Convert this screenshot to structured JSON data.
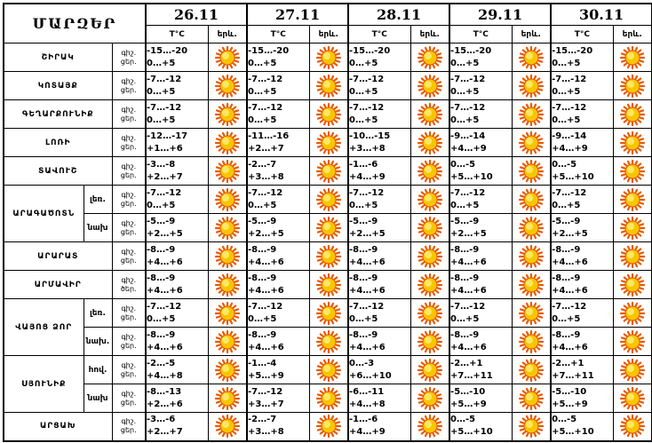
{
  "header": {
    "title": "ՄԱՐԶԵՐ",
    "dates": [
      "26.11",
      "27.11",
      "28.11",
      "29.11",
      "30.11"
    ],
    "temp_label": "T°C",
    "weather_label": "երև."
  },
  "labels": {
    "night": "գիշ.",
    "day": "ցեր.",
    "day_alt": "ծեր."
  },
  "icon": "sun-icon",
  "colors": {
    "sun_core": "#f7c600",
    "sun_rays": "#e85a00"
  },
  "rows": [
    {
      "region": "ՇԻՐԱԿ",
      "sub": "",
      "label_day": "ցեր.",
      "temps": [
        [
          "-15…-20",
          "0…+5"
        ],
        [
          "-15…-20",
          "0…+5"
        ],
        [
          "-15…-20",
          "0…+5"
        ],
        [
          "-15…-20",
          "0…+5"
        ],
        [
          "-15…-20",
          "0…+5"
        ]
      ]
    },
    {
      "region": "ԿՈՏԱՅՔ",
      "sub": "",
      "label_day": "ցեր.",
      "temps": [
        [
          "-7…-12",
          "0…+5"
        ],
        [
          "-7…-12",
          "0…+5"
        ],
        [
          "-7…-12",
          "0…+5"
        ],
        [
          "-7…-12",
          "0…+5"
        ],
        [
          "-7…-12",
          "0…+5"
        ]
      ]
    },
    {
      "region": "ԳԵՂԱՐՔՈՒՆԻՔ",
      "sub": "",
      "label_day": "ցեր.",
      "temps": [
        [
          "-7…-12",
          "0…+5"
        ],
        [
          "-7…-12",
          "0…+5"
        ],
        [
          "-7…-12",
          "0…+5"
        ],
        [
          "-7…-12",
          "0…+5"
        ],
        [
          "-7…-12",
          "0…+5"
        ]
      ]
    },
    {
      "region": "ԼՈՌԻ",
      "sub": "",
      "label_day": "ցեր.",
      "temps": [
        [
          "-12…-17",
          "+1…+6"
        ],
        [
          "-11…-16",
          "+2…+7"
        ],
        [
          "-10…-15",
          "+3…+8"
        ],
        [
          "-9…-14",
          "+4…+9"
        ],
        [
          "-9…-14",
          "+4…+9"
        ]
      ]
    },
    {
      "region": "ՏԱՎՈՒՇ",
      "sub": "",
      "label_day": "ցեր.",
      "temps": [
        [
          "-3…-8",
          "+2…+7"
        ],
        [
          "-2…-7",
          "+3…+8"
        ],
        [
          "-1…-6",
          "+4…+9"
        ],
        [
          "0…-5",
          "+5…+10"
        ],
        [
          "0…-5",
          "+5…+10"
        ]
      ]
    },
    {
      "region": "ԱՐԱԳԱԾՈՏՆ",
      "sub": "լեռ.",
      "label_day": "ցեր.",
      "temps": [
        [
          "-7…-12",
          "0…+5"
        ],
        [
          "-7…-12",
          "0…+5"
        ],
        [
          "-7…-12",
          "0…+5"
        ],
        [
          "-7…-12",
          "0…+5"
        ],
        [
          "-7…-12",
          "0…+5"
        ]
      ]
    },
    {
      "region": "",
      "sub": "նախ",
      "label_day": "ցեր.",
      "temps": [
        [
          "-5…-9",
          "+2…+5"
        ],
        [
          "-5…-9",
          "+2…+5"
        ],
        [
          "-5…-9",
          "+2…+5"
        ],
        [
          "-5…-9",
          "+2…+5"
        ],
        [
          "-5…-9",
          "+2…+5"
        ]
      ]
    },
    {
      "region": "ԱՐԱՐԱՏ",
      "sub": "",
      "label_day": "ցեր.",
      "temps": [
        [
          "-8…-9",
          "+4…+6"
        ],
        [
          "-8…-9",
          "+4…+6"
        ],
        [
          "-8…-9",
          "+4…+6"
        ],
        [
          "-8…-9",
          "+4…+6"
        ],
        [
          "-8…-9",
          "+4…+6"
        ]
      ]
    },
    {
      "region": "ԱՐՄԱՎԻՐ",
      "sub": "",
      "label_day": "ծեր.",
      "temps": [
        [
          "-8…-9",
          "+4…+6"
        ],
        [
          "-8…-9",
          "+4…+6"
        ],
        [
          "-8…-9",
          "+4…+6"
        ],
        [
          "-8…-9",
          "+4…+6"
        ],
        [
          "-8…-9",
          "+4…+6"
        ]
      ]
    },
    {
      "region": "ՎԱՅՈՑ ՁՈՐ",
      "sub": "լեռ.",
      "label_day": "ցեր.",
      "temps": [
        [
          "-7…-12",
          "0…+5"
        ],
        [
          "-7…-12",
          "0…+5"
        ],
        [
          "-7…-12",
          "0…+5"
        ],
        [
          "-7…-12",
          "0…+5"
        ],
        [
          "-7…-12",
          "0…+5"
        ]
      ]
    },
    {
      "region": "",
      "sub": "նախ.",
      "label_day": "ցեր.",
      "temps": [
        [
          "-8…-9",
          "+4…+6"
        ],
        [
          "-8…-9",
          "+4…+6"
        ],
        [
          "-8…-9",
          "+4…+6"
        ],
        [
          "-8…-9",
          "+4…+6"
        ],
        [
          "-8…-9",
          "+4…+6"
        ]
      ]
    },
    {
      "region": "ՍՅՈՒՆԻՔ",
      "sub": "հով.",
      "label_day": "ցեր.",
      "temps": [
        [
          "-2…-5",
          "+4…+8"
        ],
        [
          "-1…-4",
          "+5…+9"
        ],
        [
          "0…-3",
          "+6…+10"
        ],
        [
          "-2…+1",
          "+7…+11"
        ],
        [
          "-2…+1",
          "+7…+11"
        ]
      ]
    },
    {
      "region": "",
      "sub": "նախ",
      "label_day": "ցեր.",
      "temps": [
        [
          "-8…-13",
          "+2…+6"
        ],
        [
          "-7…-12",
          "+3…+7"
        ],
        [
          "-6…-11",
          "+4…+8"
        ],
        [
          "-5…-10",
          "+5…+9"
        ],
        [
          "-5…-10",
          "+5…+9"
        ]
      ]
    },
    {
      "region": "ԱՐՑԱԽ",
      "sub": "",
      "label_day": "ցեր.",
      "temps": [
        [
          "-3…-6",
          "+2…+7"
        ],
        [
          "-2…-7",
          "+3…+8"
        ],
        [
          "-1…-6",
          "+4…+9"
        ],
        [
          "0…-5",
          "+5…+10"
        ],
        [
          "0…-5",
          "+5…+10"
        ]
      ]
    }
  ]
}
